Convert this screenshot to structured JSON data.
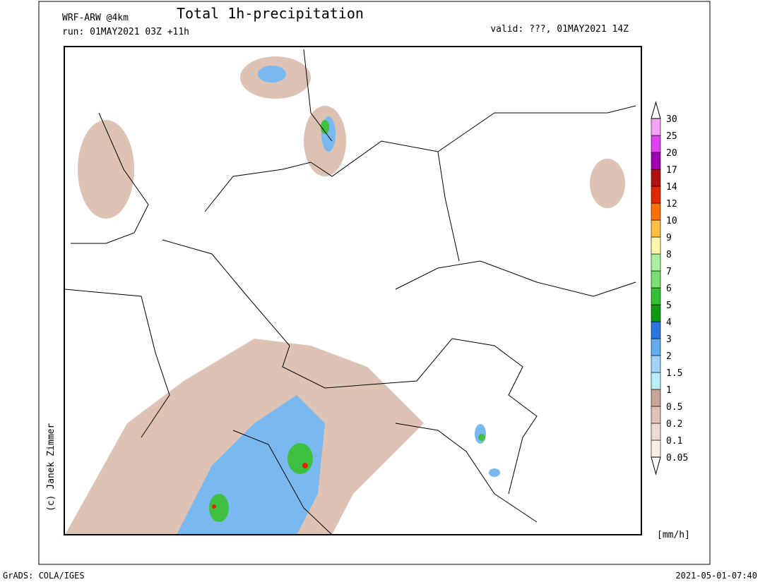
{
  "header": {
    "model": "WRF-ARW @4km",
    "title": "Total 1h-precipitation",
    "run": "run: 01MAY2021 03Z +11h",
    "valid": "valid: ???, 01MAY2021 14Z"
  },
  "legend": {
    "levels": [
      "0.05",
      "0.1",
      "0.2",
      "0.5",
      "1",
      "1.5",
      "2",
      "3",
      "4",
      "5",
      "6",
      "7",
      "8",
      "9",
      "10",
      "12",
      "14",
      "17",
      "20",
      "25",
      "30"
    ],
    "colors": [
      "#f8eee6",
      "#eedcd2",
      "#e0c4b8",
      "#c8a496",
      "#b8f0f8",
      "#a0d4f8",
      "#64acf0",
      "#2c74e0",
      "#109a10",
      "#34c034",
      "#78e070",
      "#aaf0a0",
      "#fff8a8",
      "#ffc040",
      "#ff7000",
      "#e02800",
      "#b01010",
      "#a000b0",
      "#e040f0",
      "#f4a4f4"
    ],
    "unit": "[mm/h]"
  },
  "credit": "(c) Janek Zimmer",
  "footer": {
    "left": "GrADS: COLA/IGES",
    "right": "2021-05-01-07:40"
  }
}
